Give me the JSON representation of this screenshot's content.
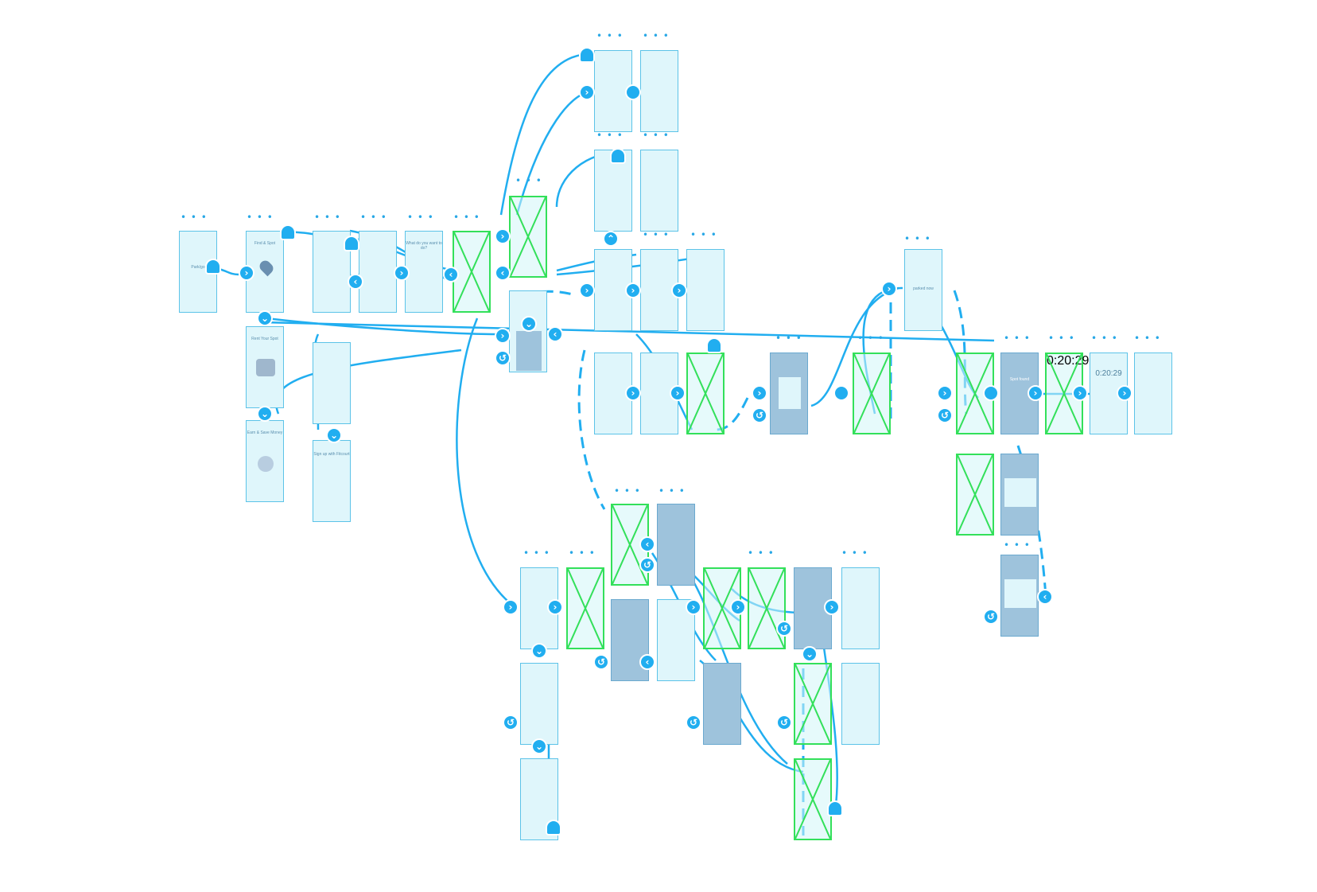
{
  "canvas": {
    "board_menu_glyph": "• • •"
  },
  "colors": {
    "wire": "#21aef0",
    "board_fill": "#dff6fb",
    "board_dark_fill": "#9ec3dc",
    "placeholder_border": "#33e05a"
  },
  "boards": {
    "splash_label": "Park/go",
    "intro1_title": "Find & Spot",
    "intro2_title": "Rent Your Spot",
    "intro3_title": "Earn & Save Money",
    "signup_text": "Sign up with Fitcourt",
    "question_text": "What do you want to do?",
    "spot_found": "Spot found",
    "timer_a": "0:20:29",
    "timer_b": "0:20:29",
    "parked_button": "parked now"
  },
  "node_glyphs": {
    "forward": "›",
    "back": "‹",
    "down": "⌄",
    "up": "⌃",
    "undo": "↺",
    "handle": ""
  }
}
